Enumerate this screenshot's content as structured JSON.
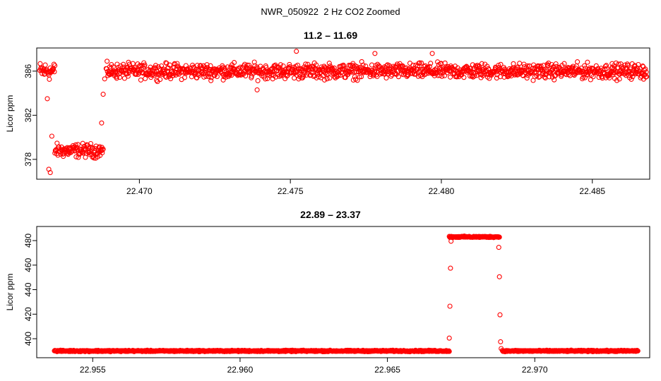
{
  "page": {
    "title": "NWR_050922  2 Hz CO2 Zoomed"
  },
  "colors": {
    "points": "#ff0000",
    "axis": "#000000"
  },
  "chart_data": [
    {
      "type": "scatter",
      "title": "11.2 – 11.69",
      "xlabel": "",
      "ylabel": "Licor ppm",
      "xlim": [
        22.4666,
        22.4869
      ],
      "ylim": [
        376.2,
        388.1
      ],
      "x_ticks": [
        22.47,
        22.475,
        22.48,
        22.485
      ],
      "x_tick_labels": [
        "22.470",
        "22.475",
        "22.480",
        "22.485"
      ],
      "y_ticks": [
        378,
        382,
        386
      ],
      "y_tick_labels": [
        "378",
        "382",
        "386"
      ],
      "grid": false,
      "series": [
        {
          "marker": "open-circle",
          "segments": [
            {
              "x_start": 22.4667,
              "x_end": 22.4672,
              "y_level": 386.0,
              "y_spread": 1.2
            },
            {
              "x_start": 22.4672,
              "x_end": 22.4688,
              "y_level": 378.8,
              "y_spread": 0.9
            },
            {
              "x_start": 22.4689,
              "x_end": 22.4868,
              "y_level": 386.0,
              "y_spread": 1.0
            }
          ],
          "values": [
            [
              22.46695,
              383.5
            ],
            [
              22.467,
              377.1
            ],
            [
              22.46705,
              376.8
            ],
            [
              22.4671,
              380.1
            ],
            [
              22.46875,
              381.3
            ],
            [
              22.4688,
              383.9
            ],
            [
              22.46885,
              385.3
            ],
            [
              22.4752,
              387.8
            ],
            [
              22.4778,
              387.6
            ],
            [
              22.4797,
              387.6
            ],
            [
              22.4739,
              384.3
            ]
          ]
        }
      ]
    },
    {
      "type": "scatter",
      "title": "22.89 – 23.37",
      "xlabel": "",
      "ylabel": "Licor ppm",
      "xlim": [
        22.9531,
        22.9739
      ],
      "ylim": [
        384.5,
        491.5
      ],
      "x_ticks": [
        22.955,
        22.96,
        22.965,
        22.97
      ],
      "x_tick_labels": [
        "22.955",
        "22.960",
        "22.965",
        "22.970"
      ],
      "y_ticks": [
        400,
        420,
        440,
        460,
        480
      ],
      "y_tick_labels": [
        "400",
        "420",
        "440",
        "460",
        "480"
      ],
      "grid": false,
      "series": [
        {
          "marker": "open-circle",
          "segments": [
            {
              "x_start": 22.9537,
              "x_end": 22.9671,
              "y_level": 390.0,
              "y_spread": 0.8
            },
            {
              "x_start": 22.9671,
              "x_end": 22.9688,
              "y_level": 483.0,
              "y_spread": 0.8
            },
            {
              "x_start": 22.9689,
              "x_end": 22.9735,
              "y_level": 390.0,
              "y_spread": 0.8
            }
          ],
          "values": [
            [
              22.9671,
              400.5
            ],
            [
              22.96712,
              426.5
            ],
            [
              22.96714,
              457.5
            ],
            [
              22.96716,
              479.5
            ],
            [
              22.96878,
              474.5
            ],
            [
              22.9688,
              450.5
            ],
            [
              22.96882,
              419.5
            ],
            [
              22.96884,
              397.5
            ],
            [
              22.96886,
              392.0
            ]
          ]
        }
      ]
    }
  ]
}
